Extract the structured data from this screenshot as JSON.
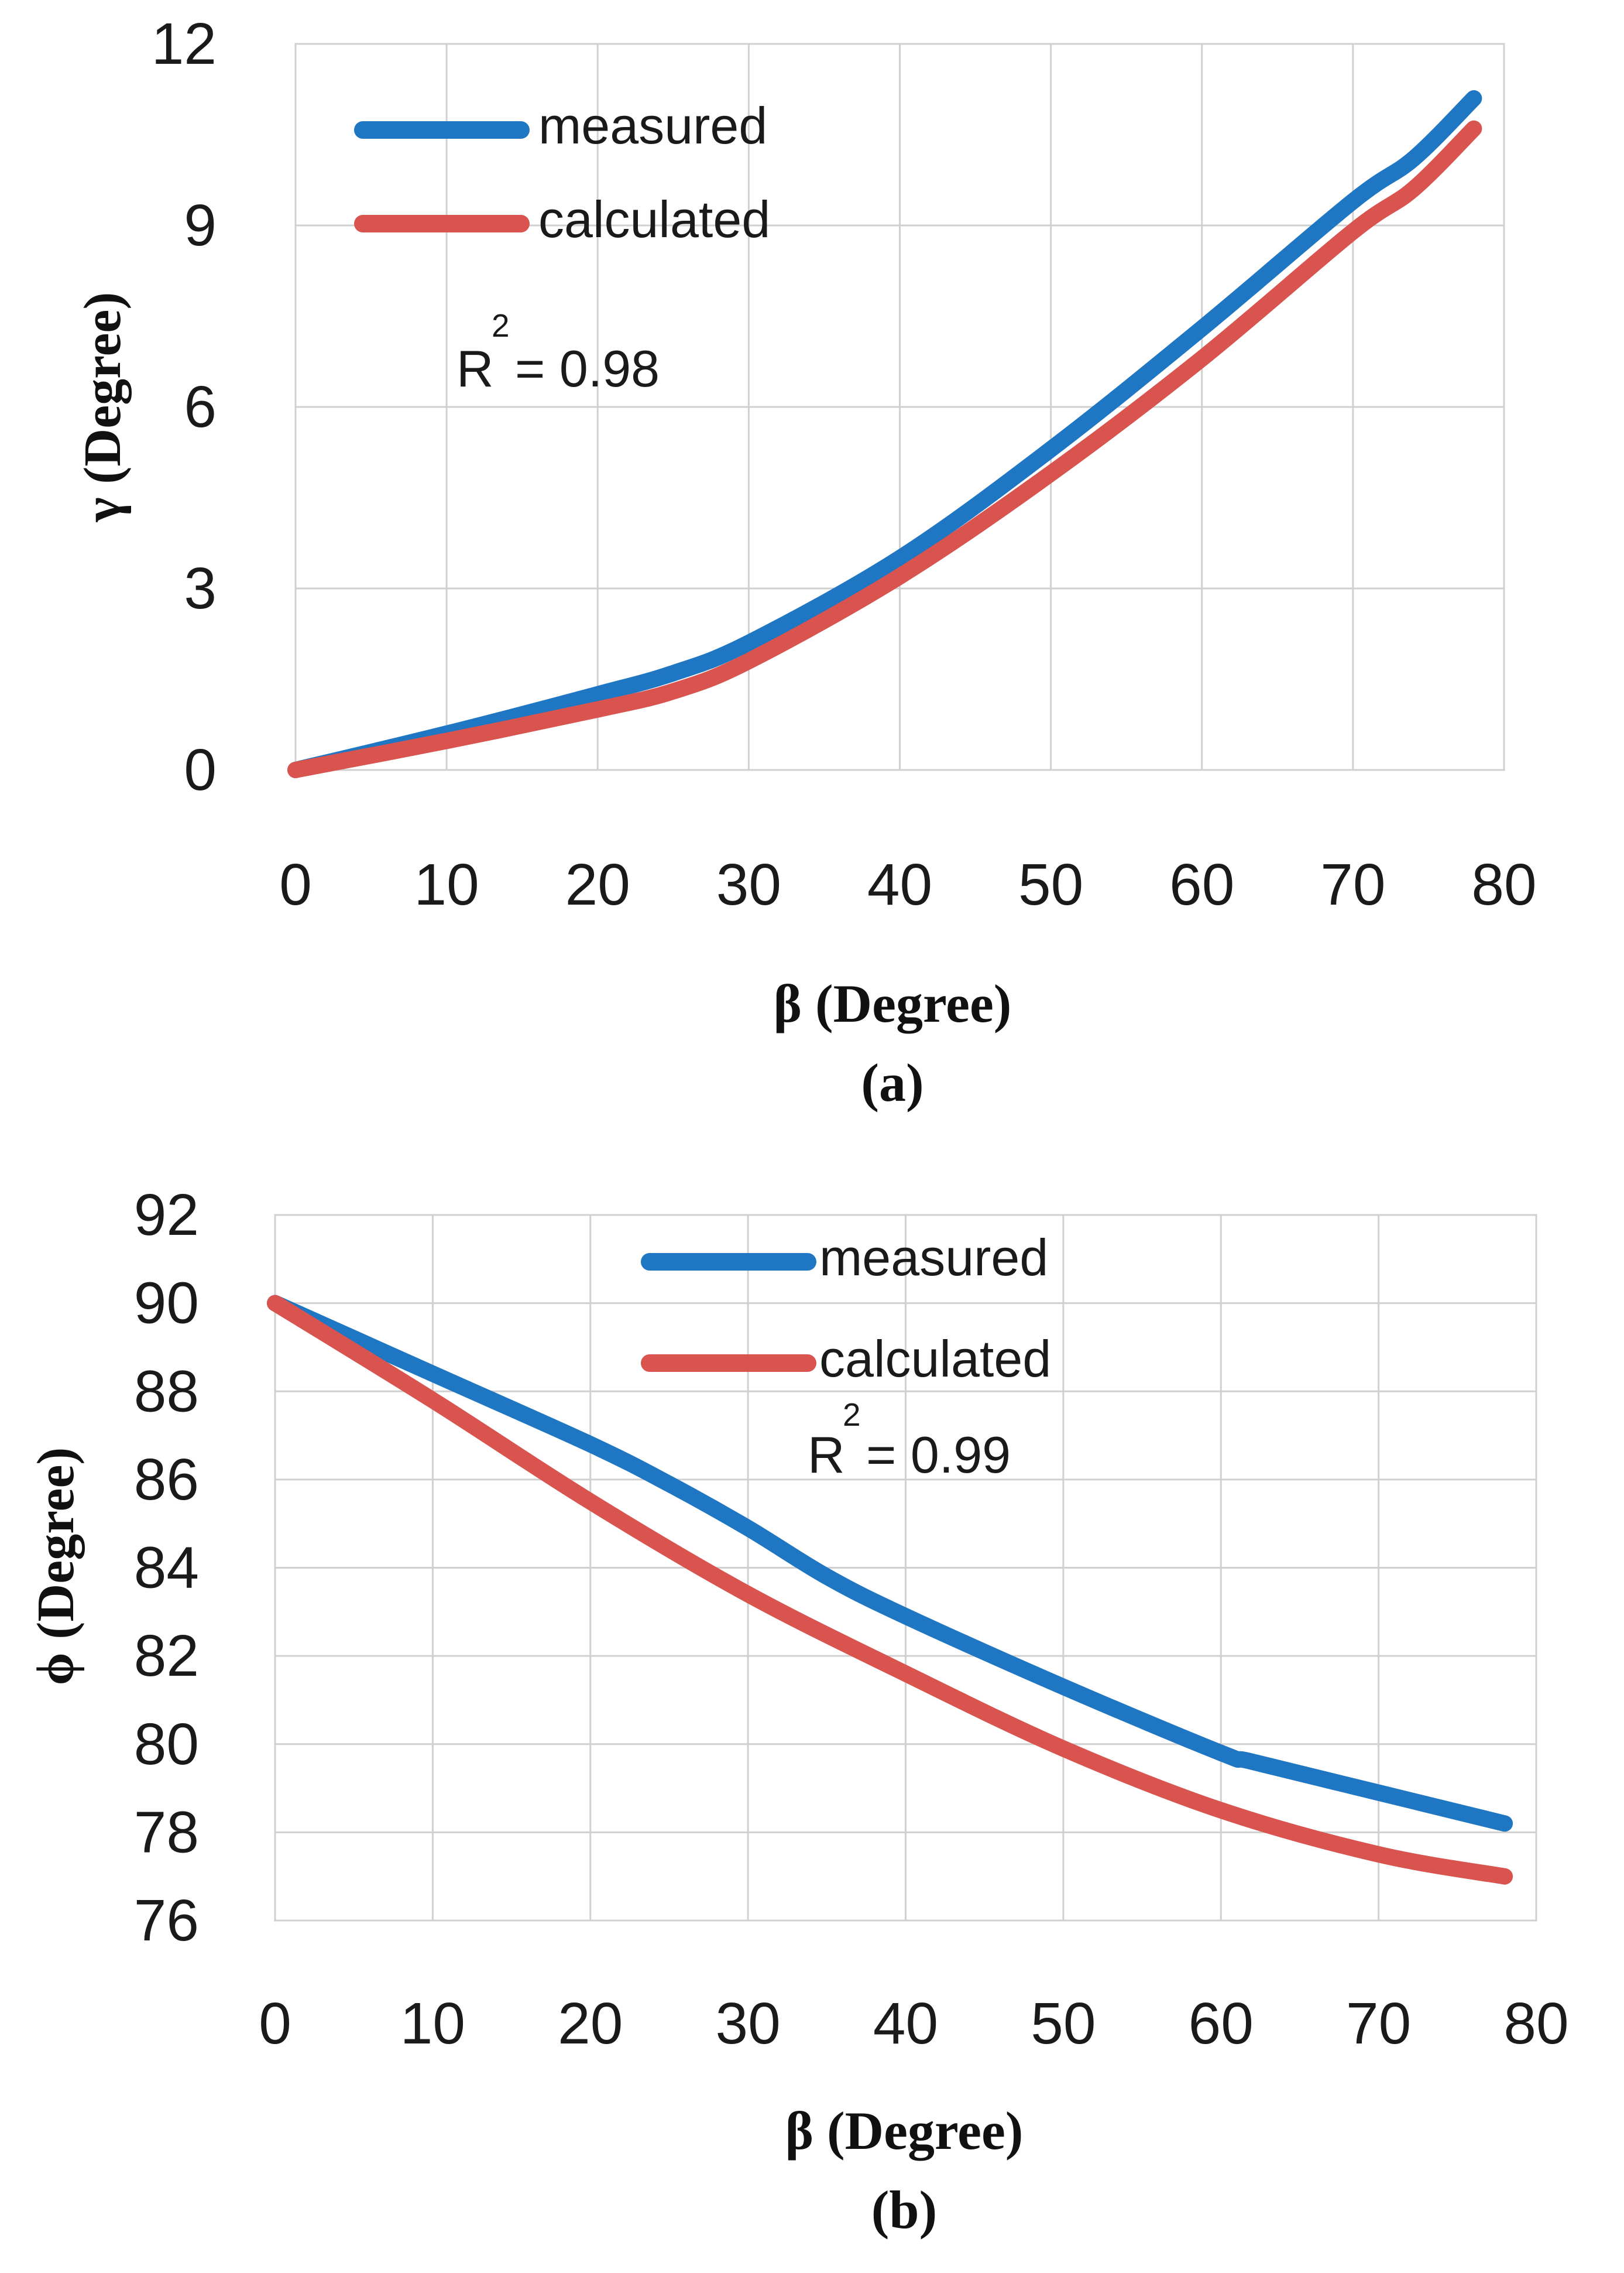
{
  "chart_data": [
    {
      "type": "line",
      "panel_label": "(a)",
      "xlabel": "β (Degree)",
      "ylabel": "γ (Degree)",
      "xlim": [
        0,
        80
      ],
      "ylim": [
        0,
        12
      ],
      "xticks": [
        0,
        10,
        20,
        30,
        40,
        50,
        60,
        70,
        80
      ],
      "yticks": [
        0,
        3,
        6,
        9,
        12
      ],
      "grid": true,
      "legend_position": "top-left",
      "annotation": {
        "base": "R",
        "superscript": "2",
        "text": "= 0.98"
      },
      "series": [
        {
          "name": "measured",
          "color": "#1f77c4",
          "x": [
            0,
            10,
            20,
            25,
            30,
            40,
            50,
            60,
            70,
            74,
            78
          ],
          "y": [
            0,
            0.6,
            1.25,
            1.6,
            2.1,
            3.5,
            5.3,
            7.3,
            9.4,
            10.1,
            11.1
          ]
        },
        {
          "name": "calculated",
          "color": "#d9534f",
          "x": [
            0,
            10,
            20,
            25,
            30,
            40,
            50,
            60,
            70,
            74,
            78
          ],
          "y": [
            0,
            0.48,
            1.0,
            1.3,
            1.8,
            3.2,
            4.9,
            6.8,
            8.9,
            9.6,
            10.6
          ]
        }
      ]
    },
    {
      "type": "line",
      "panel_label": "(b)",
      "xlabel": "β (Degree)",
      "ylabel": "ϕ (Degree)",
      "xlim": [
        0,
        80
      ],
      "ylim": [
        76,
        92
      ],
      "xticks": [
        0,
        10,
        20,
        30,
        40,
        50,
        60,
        70,
        80
      ],
      "yticks": [
        76,
        78,
        80,
        82,
        84,
        86,
        88,
        90,
        92
      ],
      "grid": true,
      "legend_position": "top-center",
      "annotation": {
        "base": "R",
        "superscript": "2",
        "text": "= 0.99"
      },
      "series": [
        {
          "name": "measured",
          "color": "#1f77c4",
          "x": [
            0,
            10,
            20,
            25,
            30,
            35,
            40,
            50,
            60,
            62,
            70,
            78
          ],
          "y": [
            90,
            88.4,
            86.8,
            85.9,
            84.9,
            83.8,
            82.9,
            81.3,
            79.8,
            79.6,
            78.9,
            78.2
          ]
        },
        {
          "name": "calculated",
          "color": "#d9534f",
          "x": [
            0,
            10,
            20,
            30,
            40,
            50,
            60,
            70,
            78
          ],
          "y": [
            90,
            87.8,
            85.5,
            83.4,
            81.6,
            79.9,
            78.5,
            77.5,
            77.0
          ]
        }
      ]
    }
  ]
}
